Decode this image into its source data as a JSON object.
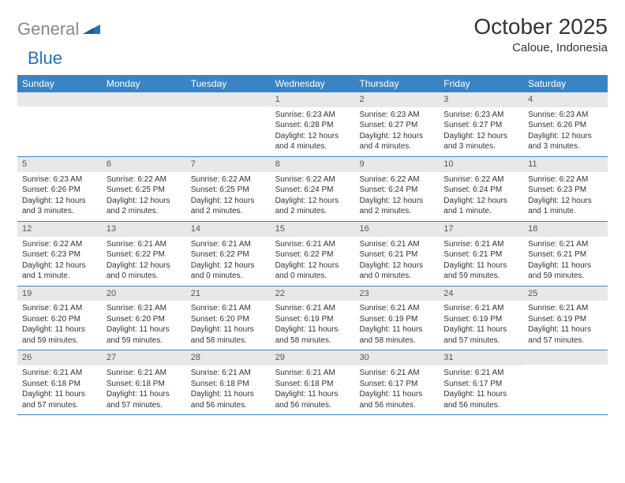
{
  "colors": {
    "header_bg": "#3b84c4",
    "header_text": "#ffffff",
    "daynum_bg": "#e8e8e8",
    "daynum_text": "#555555",
    "body_text": "#333333",
    "row_border": "#3b84c4",
    "logo_gray": "#888888",
    "logo_blue": "#2b6fb0"
  },
  "typography": {
    "title_fontsize": 28,
    "location_fontsize": 15,
    "weekday_fontsize": 12,
    "daynum_fontsize": 11,
    "daytext_fontsize": 10,
    "logo_fontsize": 22
  },
  "logo": {
    "text1": "General",
    "text2": "Blue"
  },
  "title": "October 2025",
  "location": "Caloue, Indonesia",
  "weekdays": [
    "Sunday",
    "Monday",
    "Tuesday",
    "Wednesday",
    "Thursday",
    "Friday",
    "Saturday"
  ],
  "weeks": [
    [
      {
        "num": "",
        "sunrise": "",
        "sunset": "",
        "daylight": ""
      },
      {
        "num": "",
        "sunrise": "",
        "sunset": "",
        "daylight": ""
      },
      {
        "num": "",
        "sunrise": "",
        "sunset": "",
        "daylight": ""
      },
      {
        "num": "1",
        "sunrise": "Sunrise: 6:23 AM",
        "sunset": "Sunset: 6:28 PM",
        "daylight": "Daylight: 12 hours and 4 minutes."
      },
      {
        "num": "2",
        "sunrise": "Sunrise: 6:23 AM",
        "sunset": "Sunset: 6:27 PM",
        "daylight": "Daylight: 12 hours and 4 minutes."
      },
      {
        "num": "3",
        "sunrise": "Sunrise: 6:23 AM",
        "sunset": "Sunset: 6:27 PM",
        "daylight": "Daylight: 12 hours and 3 minutes."
      },
      {
        "num": "4",
        "sunrise": "Sunrise: 6:23 AM",
        "sunset": "Sunset: 6:26 PM",
        "daylight": "Daylight: 12 hours and 3 minutes."
      }
    ],
    [
      {
        "num": "5",
        "sunrise": "Sunrise: 6:23 AM",
        "sunset": "Sunset: 6:26 PM",
        "daylight": "Daylight: 12 hours and 3 minutes."
      },
      {
        "num": "6",
        "sunrise": "Sunrise: 6:22 AM",
        "sunset": "Sunset: 6:25 PM",
        "daylight": "Daylight: 12 hours and 2 minutes."
      },
      {
        "num": "7",
        "sunrise": "Sunrise: 6:22 AM",
        "sunset": "Sunset: 6:25 PM",
        "daylight": "Daylight: 12 hours and 2 minutes."
      },
      {
        "num": "8",
        "sunrise": "Sunrise: 6:22 AM",
        "sunset": "Sunset: 6:24 PM",
        "daylight": "Daylight: 12 hours and 2 minutes."
      },
      {
        "num": "9",
        "sunrise": "Sunrise: 6:22 AM",
        "sunset": "Sunset: 6:24 PM",
        "daylight": "Daylight: 12 hours and 2 minutes."
      },
      {
        "num": "10",
        "sunrise": "Sunrise: 6:22 AM",
        "sunset": "Sunset: 6:24 PM",
        "daylight": "Daylight: 12 hours and 1 minute."
      },
      {
        "num": "11",
        "sunrise": "Sunrise: 6:22 AM",
        "sunset": "Sunset: 6:23 PM",
        "daylight": "Daylight: 12 hours and 1 minute."
      }
    ],
    [
      {
        "num": "12",
        "sunrise": "Sunrise: 6:22 AM",
        "sunset": "Sunset: 6:23 PM",
        "daylight": "Daylight: 12 hours and 1 minute."
      },
      {
        "num": "13",
        "sunrise": "Sunrise: 6:21 AM",
        "sunset": "Sunset: 6:22 PM",
        "daylight": "Daylight: 12 hours and 0 minutes."
      },
      {
        "num": "14",
        "sunrise": "Sunrise: 6:21 AM",
        "sunset": "Sunset: 6:22 PM",
        "daylight": "Daylight: 12 hours and 0 minutes."
      },
      {
        "num": "15",
        "sunrise": "Sunrise: 6:21 AM",
        "sunset": "Sunset: 6:22 PM",
        "daylight": "Daylight: 12 hours and 0 minutes."
      },
      {
        "num": "16",
        "sunrise": "Sunrise: 6:21 AM",
        "sunset": "Sunset: 6:21 PM",
        "daylight": "Daylight: 12 hours and 0 minutes."
      },
      {
        "num": "17",
        "sunrise": "Sunrise: 6:21 AM",
        "sunset": "Sunset: 6:21 PM",
        "daylight": "Daylight: 11 hours and 59 minutes."
      },
      {
        "num": "18",
        "sunrise": "Sunrise: 6:21 AM",
        "sunset": "Sunset: 6:21 PM",
        "daylight": "Daylight: 11 hours and 59 minutes."
      }
    ],
    [
      {
        "num": "19",
        "sunrise": "Sunrise: 6:21 AM",
        "sunset": "Sunset: 6:20 PM",
        "daylight": "Daylight: 11 hours and 59 minutes."
      },
      {
        "num": "20",
        "sunrise": "Sunrise: 6:21 AM",
        "sunset": "Sunset: 6:20 PM",
        "daylight": "Daylight: 11 hours and 59 minutes."
      },
      {
        "num": "21",
        "sunrise": "Sunrise: 6:21 AM",
        "sunset": "Sunset: 6:20 PM",
        "daylight": "Daylight: 11 hours and 58 minutes."
      },
      {
        "num": "22",
        "sunrise": "Sunrise: 6:21 AM",
        "sunset": "Sunset: 6:19 PM",
        "daylight": "Daylight: 11 hours and 58 minutes."
      },
      {
        "num": "23",
        "sunrise": "Sunrise: 6:21 AM",
        "sunset": "Sunset: 6:19 PM",
        "daylight": "Daylight: 11 hours and 58 minutes."
      },
      {
        "num": "24",
        "sunrise": "Sunrise: 6:21 AM",
        "sunset": "Sunset: 6:19 PM",
        "daylight": "Daylight: 11 hours and 57 minutes."
      },
      {
        "num": "25",
        "sunrise": "Sunrise: 6:21 AM",
        "sunset": "Sunset: 6:19 PM",
        "daylight": "Daylight: 11 hours and 57 minutes."
      }
    ],
    [
      {
        "num": "26",
        "sunrise": "Sunrise: 6:21 AM",
        "sunset": "Sunset: 6:18 PM",
        "daylight": "Daylight: 11 hours and 57 minutes."
      },
      {
        "num": "27",
        "sunrise": "Sunrise: 6:21 AM",
        "sunset": "Sunset: 6:18 PM",
        "daylight": "Daylight: 11 hours and 57 minutes."
      },
      {
        "num": "28",
        "sunrise": "Sunrise: 6:21 AM",
        "sunset": "Sunset: 6:18 PM",
        "daylight": "Daylight: 11 hours and 56 minutes."
      },
      {
        "num": "29",
        "sunrise": "Sunrise: 6:21 AM",
        "sunset": "Sunset: 6:18 PM",
        "daylight": "Daylight: 11 hours and 56 minutes."
      },
      {
        "num": "30",
        "sunrise": "Sunrise: 6:21 AM",
        "sunset": "Sunset: 6:17 PM",
        "daylight": "Daylight: 11 hours and 56 minutes."
      },
      {
        "num": "31",
        "sunrise": "Sunrise: 6:21 AM",
        "sunset": "Sunset: 6:17 PM",
        "daylight": "Daylight: 11 hours and 56 minutes."
      },
      {
        "num": "",
        "sunrise": "",
        "sunset": "",
        "daylight": ""
      }
    ]
  ]
}
